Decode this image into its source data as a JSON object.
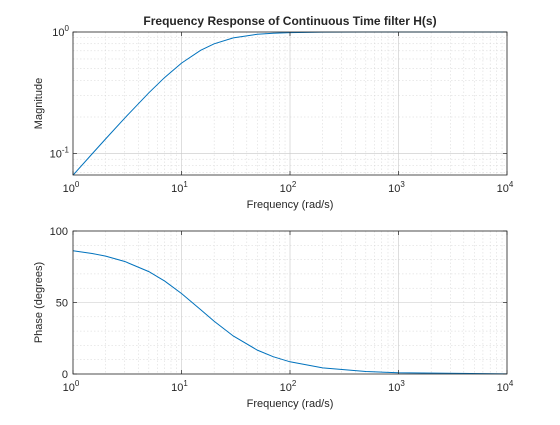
{
  "figure": {
    "title": "Frequency Response of Continuous Time filter H(s)"
  },
  "chart_data": [
    {
      "type": "line",
      "title": "Frequency Response of Continuous Time filter H(s)",
      "xlabel": "Frequency (rad/s)",
      "ylabel": "Magnitude",
      "xscale": "log",
      "yscale": "log",
      "xlim": [
        1,
        10000
      ],
      "ylim": [
        0.0667,
        1
      ],
      "grid": true,
      "minor_grid": true,
      "color": "#0072BD",
      "x_ticks": [
        {
          "base": "10",
          "exp": "0"
        },
        {
          "base": "10",
          "exp": "1"
        },
        {
          "base": "10",
          "exp": "2"
        },
        {
          "base": "10",
          "exp": "3"
        },
        {
          "base": "10",
          "exp": "4"
        }
      ],
      "y_ticks": [
        {
          "base": "10",
          "exp": "-1",
          "value": 0.1
        },
        {
          "base": "10",
          "exp": "0",
          "value": 1
        }
      ],
      "x": [
        1,
        1.5,
        2,
        3,
        5,
        7,
        10,
        15,
        20,
        30,
        50,
        70,
        100,
        200,
        500,
        1000,
        10000
      ],
      "y": [
        0.0665,
        0.0995,
        0.1322,
        0.1961,
        0.3162,
        0.4229,
        0.5547,
        0.7071,
        0.8,
        0.8944,
        0.9578,
        0.9778,
        0.9889,
        0.9972,
        0.9996,
        0.9999,
        1.0
      ]
    },
    {
      "type": "line",
      "xlabel": "Frequency (rad/s)",
      "ylabel": "Phase (degrees)",
      "xscale": "log",
      "yscale": "linear",
      "xlim": [
        1,
        10000
      ],
      "ylim": [
        0,
        100
      ],
      "grid": true,
      "minor_grid": true,
      "color": "#0072BD",
      "x_ticks": [
        {
          "base": "10",
          "exp": "0"
        },
        {
          "base": "10",
          "exp": "1"
        },
        {
          "base": "10",
          "exp": "2"
        },
        {
          "base": "10",
          "exp": "3"
        },
        {
          "base": "10",
          "exp": "4"
        }
      ],
      "y_ticks": [
        {
          "label": "0",
          "value": 0
        },
        {
          "label": "50",
          "value": 50
        },
        {
          "label": "100",
          "value": 100
        }
      ],
      "x": [
        1,
        1.5,
        2,
        3,
        5,
        7,
        10,
        15,
        20,
        30,
        50,
        70,
        100,
        200,
        500,
        1000,
        10000
      ],
      "y": [
        86.2,
        84.3,
        82.4,
        78.7,
        71.6,
        65.0,
        56.3,
        45.0,
        36.9,
        26.6,
        16.7,
        12.1,
        8.53,
        4.29,
        1.72,
        0.86,
        0.086
      ]
    }
  ]
}
